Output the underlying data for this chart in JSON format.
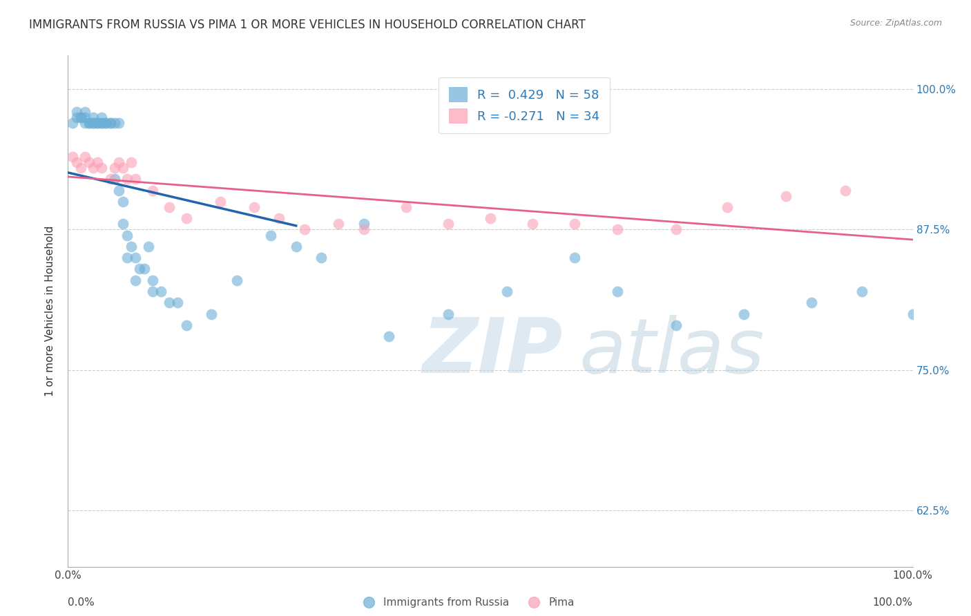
{
  "title": "IMMIGRANTS FROM RUSSIA VS PIMA 1 OR MORE VEHICLES IN HOUSEHOLD CORRELATION CHART",
  "source": "Source: ZipAtlas.com",
  "ylabel": "1 or more Vehicles in Household",
  "yticks": [
    62.5,
    75.0,
    87.5,
    100.0
  ],
  "xlim": [
    0,
    1
  ],
  "ylim": [
    0.575,
    1.03
  ],
  "legend_blue_label": "R =  0.429   N = 58",
  "legend_pink_label": "R = -0.271   N = 34",
  "legend_blue_bottom_label": "Immigrants from Russia",
  "legend_pink_bottom_label": "Pima",
  "blue_color": "#6baed6",
  "pink_color": "#fa9fb5",
  "trend_blue_color": "#2166ac",
  "trend_pink_color": "#e8608a",
  "blue_scatter_x": [
    0.005,
    0.01,
    0.01,
    0.015,
    0.015,
    0.02,
    0.02,
    0.02,
    0.025,
    0.025,
    0.03,
    0.03,
    0.03,
    0.035,
    0.035,
    0.04,
    0.04,
    0.04,
    0.045,
    0.045,
    0.05,
    0.05,
    0.055,
    0.055,
    0.06,
    0.06,
    0.065,
    0.065,
    0.07,
    0.07,
    0.075,
    0.08,
    0.08,
    0.085,
    0.09,
    0.095,
    0.1,
    0.1,
    0.11,
    0.12,
    0.13,
    0.14,
    0.17,
    0.2,
    0.24,
    0.27,
    0.3,
    0.35,
    0.38,
    0.45,
    0.52,
    0.6,
    0.65,
    0.72,
    0.8,
    0.88,
    0.94,
    1.0
  ],
  "blue_scatter_y": [
    0.97,
    0.975,
    0.98,
    0.975,
    0.975,
    0.97,
    0.975,
    0.98,
    0.97,
    0.97,
    0.97,
    0.97,
    0.975,
    0.97,
    0.97,
    0.97,
    0.97,
    0.975,
    0.97,
    0.97,
    0.97,
    0.97,
    0.92,
    0.97,
    0.91,
    0.97,
    0.88,
    0.9,
    0.85,
    0.87,
    0.86,
    0.83,
    0.85,
    0.84,
    0.84,
    0.86,
    0.83,
    0.82,
    0.82,
    0.81,
    0.81,
    0.79,
    0.8,
    0.83,
    0.87,
    0.86,
    0.85,
    0.88,
    0.78,
    0.8,
    0.82,
    0.85,
    0.82,
    0.79,
    0.8,
    0.81,
    0.82,
    0.8
  ],
  "pink_scatter_x": [
    0.005,
    0.01,
    0.015,
    0.02,
    0.025,
    0.03,
    0.035,
    0.04,
    0.05,
    0.055,
    0.06,
    0.065,
    0.07,
    0.075,
    0.08,
    0.1,
    0.12,
    0.14,
    0.18,
    0.22,
    0.25,
    0.28,
    0.32,
    0.35,
    0.4,
    0.45,
    0.5,
    0.55,
    0.6,
    0.65,
    0.72,
    0.78,
    0.85,
    0.92
  ],
  "pink_scatter_y": [
    0.94,
    0.935,
    0.93,
    0.94,
    0.935,
    0.93,
    0.935,
    0.93,
    0.92,
    0.93,
    0.935,
    0.93,
    0.92,
    0.935,
    0.92,
    0.91,
    0.895,
    0.885,
    0.9,
    0.895,
    0.885,
    0.875,
    0.88,
    0.875,
    0.895,
    0.88,
    0.885,
    0.88,
    0.88,
    0.875,
    0.875,
    0.895,
    0.905,
    0.91
  ],
  "trend_blue_x_start": 0.0,
  "trend_blue_x_end": 0.27,
  "trend_pink_x_start": 0.0,
  "trend_pink_x_end": 1.0,
  "watermark_text1": "ZIP",
  "watermark_text2": "atlas"
}
